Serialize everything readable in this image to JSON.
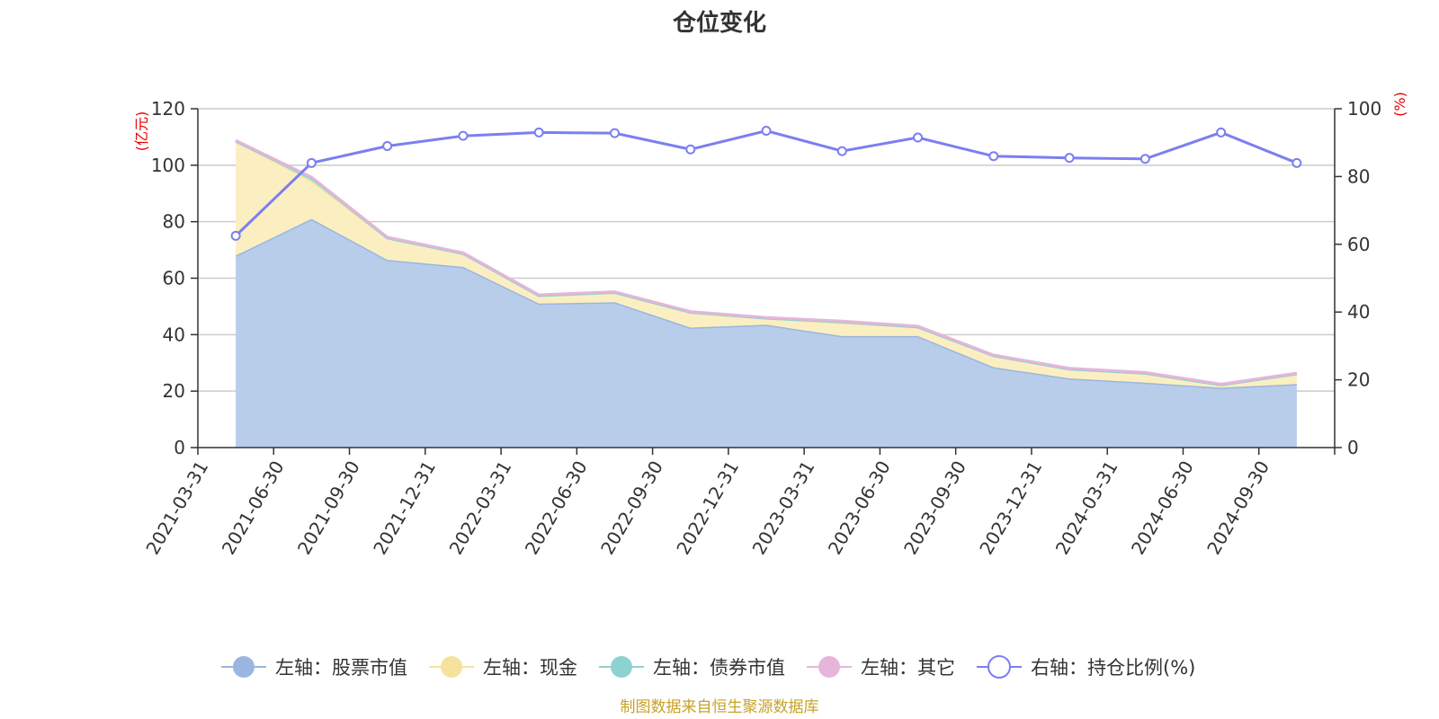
{
  "chart_data": {
    "type": "area",
    "title": "仓位变化",
    "categories": [
      "2021-03-31",
      "2021-06-30",
      "2021-09-30",
      "2021-12-31",
      "2022-03-31",
      "2022-06-30",
      "2022-09-30",
      "2022-12-31",
      "2023-03-31",
      "2023-06-30",
      "2023-09-30",
      "2023-12-31",
      "2024-03-31",
      "2024-06-30",
      "2024-09-30"
    ],
    "left_axis": {
      "unit_label": "(亿元)",
      "ylim": [
        0,
        120
      ],
      "ticks": [
        "0",
        "20",
        "40",
        "60",
        "80",
        "100",
        "120"
      ],
      "tick_values": [
        0,
        20,
        40,
        60,
        80,
        100,
        120
      ]
    },
    "right_axis": {
      "unit_label": "(%)",
      "ylim": [
        0,
        100
      ],
      "ticks": [
        "0",
        "20",
        "40",
        "60",
        "80",
        "100"
      ],
      "tick_values": [
        0,
        20,
        40,
        60,
        80,
        100
      ]
    },
    "series": [
      {
        "name": "左轴：股票市值",
        "axis": "left",
        "kind": "stacked-area",
        "color": "#9ab6e0",
        "fill": "#b8cdea",
        "values": [
          68,
          81,
          66.5,
          64,
          51,
          51.5,
          42.5,
          43.5,
          39.5,
          39.5,
          28.5,
          24.5,
          23,
          21.2,
          22.5
        ]
      },
      {
        "name": "左轴：现金",
        "axis": "left",
        "kind": "stacked-area",
        "color": "#f5e29d",
        "fill": "#fbefc2",
        "values": [
          40.5,
          13.5,
          7.7,
          4.7,
          2.8,
          3.4,
          5.4,
          2.3,
          4.7,
          3.2,
          4.0,
          3.3,
          3.3,
          1.0,
          3.6
        ]
      },
      {
        "name": "左轴：债券市值",
        "axis": "left",
        "kind": "stacked-area",
        "color": "#8ed1d1",
        "fill": "#aadddd",
        "values": [
          0,
          1.0,
          0,
          0,
          0,
          0,
          0,
          0,
          0.3,
          0,
          0,
          0,
          0,
          0,
          0
        ]
      },
      {
        "name": "左轴：其它",
        "axis": "left",
        "kind": "stacked-area",
        "color": "#e5b5da",
        "fill": "#efcbe6",
        "values": [
          0.3,
          0.3,
          0.3,
          0.3,
          0.3,
          0.3,
          0.3,
          0.3,
          0.3,
          0.3,
          0.3,
          0.3,
          0.3,
          0.3,
          0.3
        ]
      },
      {
        "name": "右轴：持仓比例(%)",
        "axis": "right",
        "kind": "line",
        "color": "#7b7ff0",
        "values": [
          62.5,
          84,
          89,
          92,
          93,
          92.8,
          88,
          93.5,
          87.5,
          91.5,
          86,
          85.5,
          85.2,
          93,
          84
        ]
      }
    ],
    "legend_position": "bottom-center",
    "grid": true
  },
  "footer": {
    "source": "制图数据来自恒生聚源数据库"
  }
}
